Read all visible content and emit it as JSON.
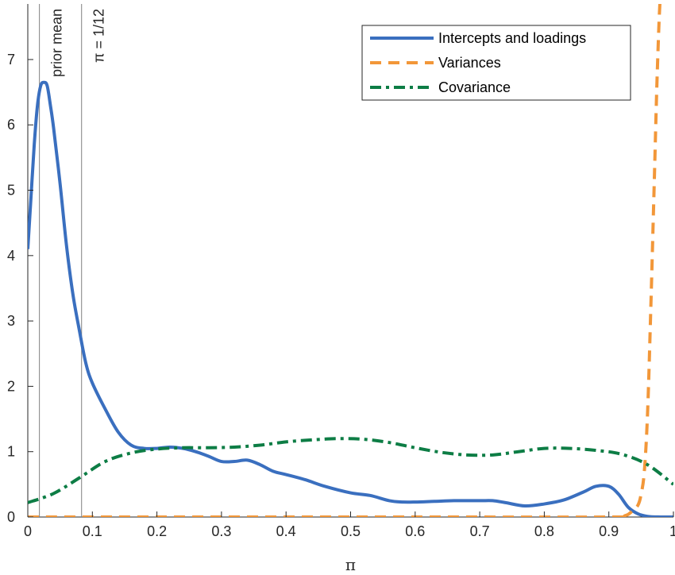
{
  "chart_data": {
    "type": "line",
    "xlabel": "π",
    "ylabel": "",
    "xlim": [
      0,
      1
    ],
    "ylim": [
      0,
      7.85
    ],
    "xticks": [
      0,
      0.1,
      0.2,
      0.3,
      0.4,
      0.5,
      0.6,
      0.7,
      0.8,
      0.9,
      1
    ],
    "xtick_labels": [
      "0",
      "0.1",
      "0.2",
      "0.3",
      "0.4",
      "0.5",
      "0.6",
      "0.7",
      "0.8",
      "0.9",
      "1"
    ],
    "yticks": [
      0,
      1,
      2,
      3,
      4,
      5,
      6,
      7
    ],
    "ytick_labels": [
      "0",
      "1",
      "2",
      "3",
      "4",
      "5",
      "6",
      "7"
    ],
    "grid": false,
    "legend_position": "top-right",
    "vertical_lines": [
      {
        "x": 0.018,
        "label": "prior mean",
        "color": "#808080"
      },
      {
        "x": 0.0833,
        "label": "π = 1/12",
        "color": "#808080"
      }
    ],
    "series": [
      {
        "name": "Intercepts and loadings",
        "color": "#3a6fbf",
        "style": "solid",
        "x": [
          0.0,
          0.005,
          0.01,
          0.015,
          0.02,
          0.025,
          0.03,
          0.035,
          0.04,
          0.05,
          0.06,
          0.07,
          0.08,
          0.09,
          0.1,
          0.12,
          0.14,
          0.16,
          0.18,
          0.2,
          0.22,
          0.24,
          0.26,
          0.28,
          0.3,
          0.32,
          0.34,
          0.36,
          0.38,
          0.4,
          0.43,
          0.46,
          0.5,
          0.53,
          0.56,
          0.58,
          0.6,
          0.63,
          0.66,
          0.7,
          0.72,
          0.74,
          0.77,
          0.8,
          0.83,
          0.86,
          0.88,
          0.9,
          0.915,
          0.93,
          0.945,
          0.96,
          0.98,
          1.0
        ],
        "y": [
          4.1,
          4.9,
          5.7,
          6.3,
          6.6,
          6.65,
          6.6,
          6.3,
          5.95,
          5.1,
          4.15,
          3.4,
          2.85,
          2.35,
          2.05,
          1.65,
          1.3,
          1.1,
          1.05,
          1.05,
          1.07,
          1.05,
          1.0,
          0.93,
          0.85,
          0.85,
          0.87,
          0.8,
          0.7,
          0.65,
          0.57,
          0.47,
          0.37,
          0.33,
          0.25,
          0.23,
          0.23,
          0.24,
          0.25,
          0.25,
          0.25,
          0.22,
          0.17,
          0.2,
          0.26,
          0.38,
          0.47,
          0.47,
          0.35,
          0.15,
          0.05,
          0.01,
          0.0,
          0.0
        ]
      },
      {
        "name": "Variances",
        "color": "#f29739",
        "style": "dashed",
        "x": [
          0.0,
          0.3,
          0.6,
          0.9,
          0.925,
          0.935,
          0.945,
          0.95,
          0.955,
          0.96,
          0.965,
          0.97,
          0.975,
          0.98,
          0.985
        ],
        "y": [
          0.0,
          0.0,
          0.0,
          0.0,
          0.02,
          0.08,
          0.18,
          0.35,
          0.7,
          1.6,
          3.2,
          5.0,
          6.8,
          8.0,
          8.0
        ]
      },
      {
        "name": "Covariance",
        "color": "#0d7d45",
        "style": "dashdot",
        "x": [
          0.0,
          0.04,
          0.08,
          0.12,
          0.16,
          0.2,
          0.24,
          0.28,
          0.32,
          0.36,
          0.4,
          0.44,
          0.48,
          0.52,
          0.56,
          0.6,
          0.64,
          0.68,
          0.72,
          0.76,
          0.8,
          0.84,
          0.88,
          0.92,
          0.96,
          1.0
        ],
        "y": [
          0.22,
          0.36,
          0.6,
          0.85,
          0.98,
          1.04,
          1.06,
          1.06,
          1.07,
          1.1,
          1.15,
          1.18,
          1.2,
          1.19,
          1.14,
          1.06,
          0.99,
          0.95,
          0.95,
          1.0,
          1.05,
          1.05,
          1.02,
          0.96,
          0.8,
          0.5
        ]
      }
    ]
  }
}
